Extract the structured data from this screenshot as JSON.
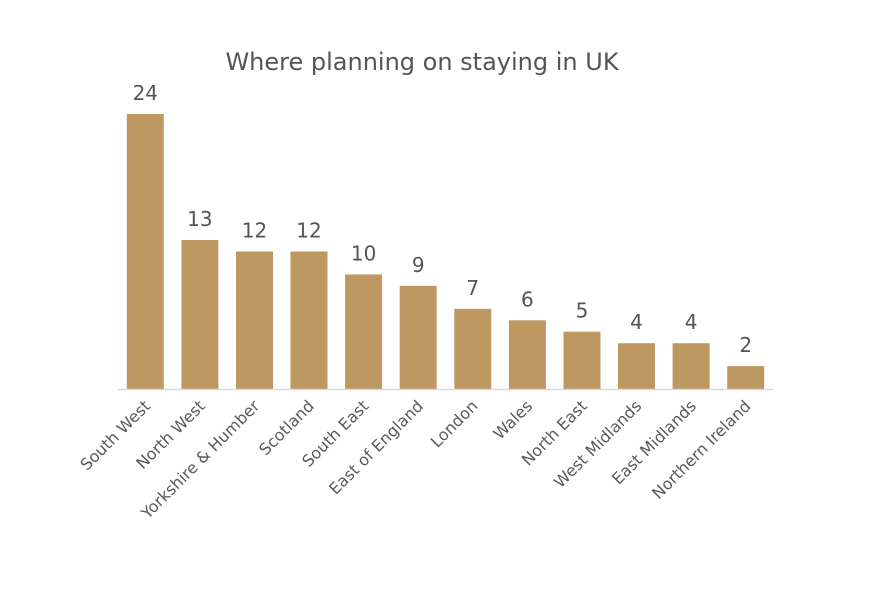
{
  "chart_data": {
    "type": "bar",
    "title": "Where planning on staying in UK",
    "xlabel": "",
    "ylabel": "",
    "categories": [
      "South West",
      "North West",
      "Yorkshire & Humber",
      "Scotland",
      "South East",
      "East of England",
      "London",
      "Wales",
      "North East",
      "West Midlands",
      "East Midlands",
      "Northern Ireland"
    ],
    "values": [
      24,
      13,
      12,
      12,
      10,
      9,
      7,
      6,
      5,
      4,
      4,
      2
    ],
    "ylim": [
      0,
      24
    ],
    "grid": false,
    "legend": "none",
    "data_labels": true,
    "colors": {
      "bar": "#BD9961",
      "axis": "#D9D9D9",
      "text": "#555555"
    }
  }
}
